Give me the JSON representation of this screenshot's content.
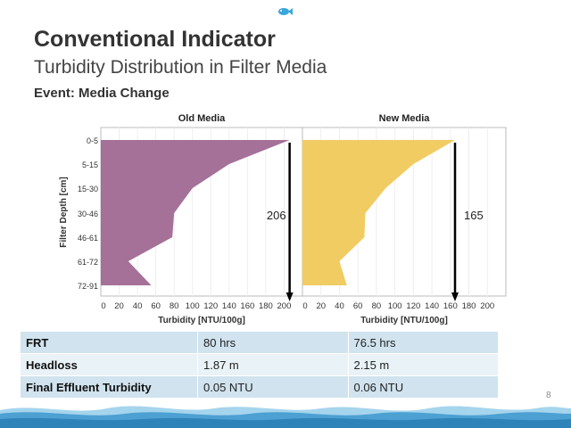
{
  "header": {
    "title": "Conventional Indicator",
    "subtitle": "Turbidity Distribution in Filter Media",
    "event": "Event: Media Change"
  },
  "chart_data": [
    {
      "type": "area",
      "title": "Old Media",
      "xlabel": "Turbidity [NTU/100g]",
      "ylabel": "Filter Depth  [cm]",
      "categories": [
        "0-5",
        "5-15",
        "15-30",
        "30-46",
        "46-61",
        "61-72",
        "72-91"
      ],
      "values": [
        206,
        140,
        100,
        80,
        78,
        30,
        55
      ],
      "xlim": [
        0,
        220
      ],
      "xticks": [
        0,
        20,
        40,
        60,
        80,
        100,
        120,
        140,
        160,
        180,
        200
      ],
      "annotation": "206",
      "color": "#a57198"
    },
    {
      "type": "area",
      "title": "New Media",
      "xlabel": "Turbidity [NTU/100g]",
      "categories": [
        "0-5",
        "5-15",
        "15-30",
        "30-46",
        "46-61",
        "61-72",
        "72-91"
      ],
      "values": [
        165,
        120,
        90,
        68,
        67,
        40,
        48
      ],
      "xlim": [
        0,
        220
      ],
      "xticks": [
        0,
        20,
        40,
        60,
        80,
        100,
        120,
        140,
        160,
        180,
        200
      ],
      "annotation": "165",
      "color": "#f0cc62"
    }
  ],
  "table": {
    "rows": [
      {
        "label": "FRT",
        "old": "80 hrs",
        "new": "76.5 hrs"
      },
      {
        "label": "Headloss",
        "old": "1.87 m",
        "new": "2.15 m"
      },
      {
        "label": "Final Effluent Turbidity",
        "old": "0.05 NTU",
        "new": "0.06 NTU"
      }
    ]
  },
  "page_number": "8"
}
